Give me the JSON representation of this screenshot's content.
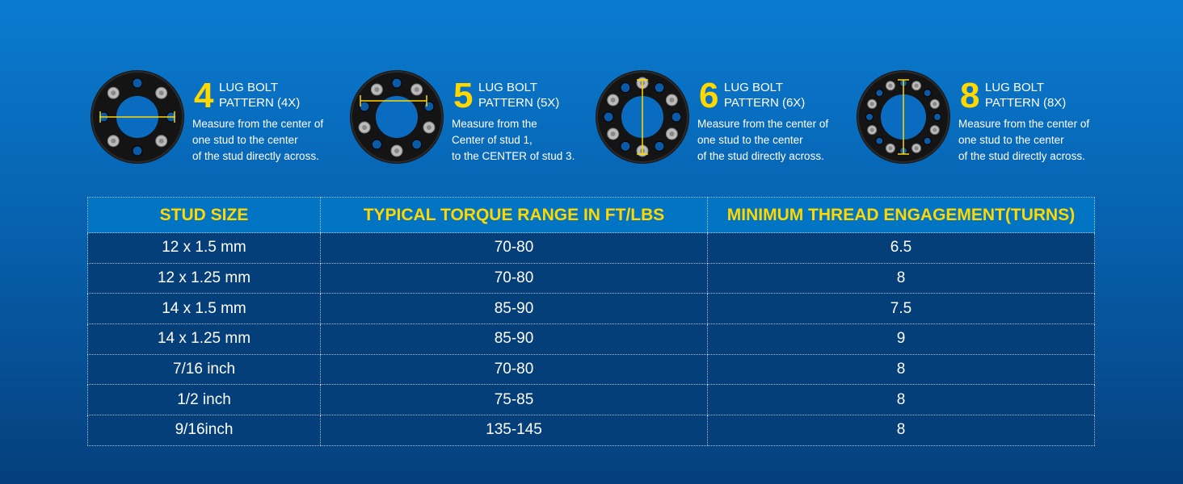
{
  "colors": {
    "accent": "#ffd800",
    "header_bg": "#0274c4",
    "row_bg": "#053f7a"
  },
  "patterns": [
    {
      "number": "4",
      "title_line1": "LUG BOLT",
      "title_line2": "PATTERN (4X)",
      "desc": [
        "Measure from the center of",
        "one stud to the center",
        "of the stud directly across."
      ],
      "studs": 4
    },
    {
      "number": "5",
      "title_line1": "LUG BOLT",
      "title_line2": "PATTERN (5X)",
      "desc": [
        "Measure from the",
        "Center of stud 1,",
        "to the CENTER  of stud 3."
      ],
      "studs": 5
    },
    {
      "number": "6",
      "title_line1": "LUG BOLT",
      "title_line2": "PATTERN (6X)",
      "desc": [
        "Measure from the center of",
        "one stud to the center",
        "of the stud directly across."
      ],
      "studs": 6
    },
    {
      "number": "8",
      "title_line1": "LUG BOLT",
      "title_line2": "PATTERN (8X)",
      "desc": [
        "Measure from the center of",
        "one stud to the center",
        "of the stud directly across."
      ],
      "studs": 8
    }
  ],
  "table": {
    "headers": [
      "STUD SIZE",
      "TYPICAL TORQUE RANGE IN FT/LBS",
      "MINIMUM THREAD ENGAGEMENT(TURNS)"
    ],
    "rows": [
      [
        "12 x 1.5 mm",
        "70-80",
        "6.5"
      ],
      [
        "12 x 1.25 mm",
        "70-80",
        "8"
      ],
      [
        "14 x 1.5 mm",
        "85-90",
        "7.5"
      ],
      [
        "14 x 1.25 mm",
        "85-90",
        "9"
      ],
      [
        "7/16 inch",
        "70-80",
        "8"
      ],
      [
        "1/2 inch",
        "75-85",
        "8"
      ],
      [
        "9/16inch",
        "135-145",
        "8"
      ]
    ]
  }
}
